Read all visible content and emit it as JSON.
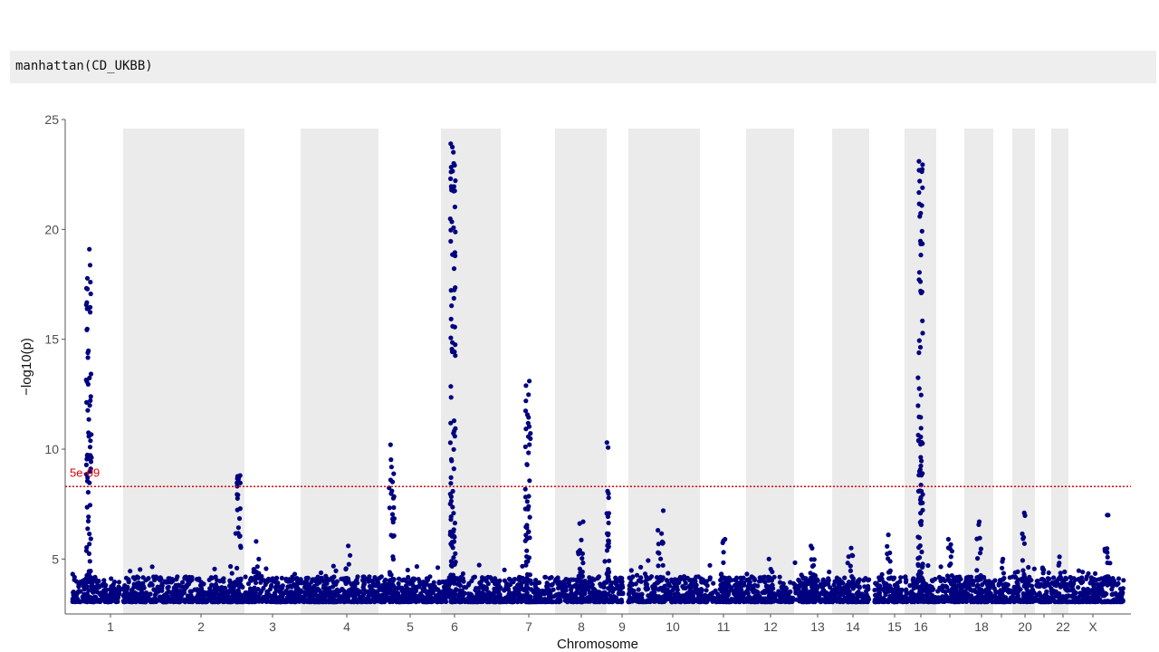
{
  "code": {
    "text": "manhattan(CD_UKBB)"
  },
  "colors": {
    "point": "#000080",
    "band": "#ebebeb",
    "threshold": "#e00000",
    "axis": "#555555"
  },
  "chart_data": {
    "type": "scatter",
    "subtype": "manhattan",
    "xlabel": "Chromosome",
    "ylabel": "−log10(p)",
    "ylim": [
      2.5,
      25
    ],
    "yticks": [
      5,
      10,
      15,
      20,
      25
    ],
    "grid": false,
    "shaded_bands": "alternating chromosomes",
    "threshold": {
      "value": 8.3,
      "label": "5e-09"
    },
    "chromosomes": [
      {
        "name": "1",
        "label": "1",
        "peak": 19.1,
        "peaks_at": [
          0.35
        ]
      },
      {
        "name": "2",
        "label": "2",
        "peak": 8.8,
        "peaks_at": [
          0.95
        ]
      },
      {
        "name": "3",
        "label": "3",
        "peak": 5.8,
        "peaks_at": [
          0.2
        ]
      },
      {
        "name": "4",
        "label": "4",
        "peak": 5.6,
        "peaks_at": [
          0.6
        ]
      },
      {
        "name": "5",
        "label": "5",
        "peak": 10.2,
        "peaks_at": [
          0.2
        ]
      },
      {
        "name": "6",
        "label": "6",
        "peak": 23.9,
        "peaks_at": [
          0.2
        ]
      },
      {
        "name": "7",
        "label": "7",
        "peak": 13.1,
        "peaks_at": [
          0.5
        ]
      },
      {
        "name": "8",
        "label": "8",
        "peak": 6.7,
        "peaks_at": [
          0.5
        ]
      },
      {
        "name": "9",
        "label": "9",
        "peak": 10.3,
        "peaks_at": [
          0.02
        ]
      },
      {
        "name": "10",
        "label": "10",
        "peak": 7.2,
        "peaks_at": [
          0.45
        ]
      },
      {
        "name": "11",
        "label": "11",
        "peak": 5.9,
        "peaks_at": [
          0.5
        ]
      },
      {
        "name": "12",
        "label": "12",
        "peak": 5.0,
        "peaks_at": [
          0.5
        ]
      },
      {
        "name": "13",
        "label": "13",
        "peak": 5.6,
        "peaks_at": [
          0.5
        ]
      },
      {
        "name": "14",
        "label": "14",
        "peak": 5.5,
        "peaks_at": [
          0.5
        ]
      },
      {
        "name": "15",
        "label": "15",
        "peak": 6.1,
        "peaks_at": [
          0.5
        ]
      },
      {
        "name": "16",
        "label": "16",
        "peak": 23.1,
        "peaks_at": [
          0.5
        ]
      },
      {
        "name": "17",
        "label": "",
        "peak": 5.9,
        "peaks_at": [
          0.5
        ]
      },
      {
        "name": "18",
        "label": "18",
        "peak": 6.7,
        "peaks_at": [
          0.5
        ]
      },
      {
        "name": "19",
        "label": "",
        "peak": 5.0,
        "peaks_at": [
          0.5
        ]
      },
      {
        "name": "20",
        "label": "20",
        "peak": 7.1,
        "peaks_at": [
          0.5
        ]
      },
      {
        "name": "21",
        "label": "",
        "peak": 4.6,
        "peaks_at": [
          0.5
        ]
      },
      {
        "name": "22",
        "label": "22",
        "peak": 5.1,
        "peaks_at": [
          0.5
        ]
      },
      {
        "name": "X",
        "label": "X",
        "peak": 7.0,
        "peaks_at": [
          0.7
        ]
      }
    ]
  }
}
